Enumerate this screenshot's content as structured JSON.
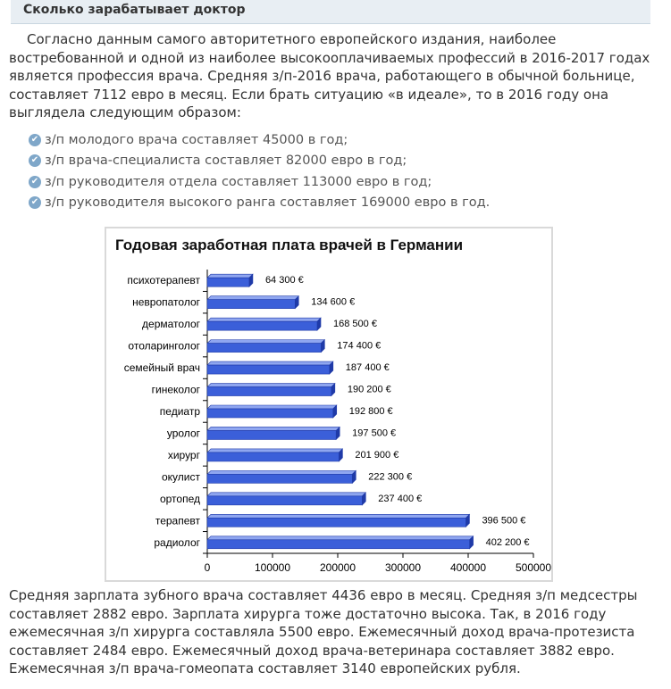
{
  "header": {
    "title": "Сколько зарабатывает доктор"
  },
  "intro": "Согласно данным самого авторитетного европейского издания, наиболее востребованной и одной из наиболее высокооплачиваемых профессий в 2016-2017 годах является профессия врача. Средняя з/п-2016 врача, работающего в обычной больнице, составляет 7112 евро в месяц. Если брать ситуацию «в идеале», то в 2016 году она выглядела следующим образом:",
  "bullets": [
    {
      "icon": "check-circle-icon",
      "text": "з/п молодого врача составляет 45000 в год;"
    },
    {
      "icon": "check-circle-icon",
      "text": "з/п врача-специалиста составляет 82000 евро в год;"
    },
    {
      "icon": "check-circle-icon",
      "text": "з/п руководителя отдела составляет 113000 евро в год;"
    },
    {
      "icon": "check-circle-icon",
      "text": "з/п руководителя высокого ранга составляет 169000 евро в год."
    }
  ],
  "outro": "Средняя зарплата зубного врача составляет 4436 евро в месяц. Средняя з/п медсестры составляет 2882 евро. Зарплата хирурга тоже достаточно высока. Так, в 2016 году ежемесячная з/п хирурга составляла 5500 евро. Ежемесячный доход врача-протезиста составляет 2484 евро. Ежемесячный доход врача-ветеринара составляет 3882 евро. Ежемесячная з/п врача-гомеопата составляет 3140 европейских рубля.",
  "colors": {
    "bar": "#3b5fd9",
    "bar_dark": "#1f3aa8",
    "bar_light": "#8fa6f0",
    "header_bg": "#e8eef3",
    "check": "#7fa7c9"
  },
  "chart_data": {
    "type": "bar",
    "orientation": "horizontal",
    "title": "Годовая заработная плата врачей в   Германии",
    "categories": [
      "психотерапевт",
      "невропатолог",
      "дерматолог",
      "отоларинголог",
      "семейный врач",
      "гинеколог",
      "педиатр",
      "уролог",
      "хирург",
      "окулист",
      "ортопед",
      "терапевт",
      "радиолог"
    ],
    "values": [
      64300,
      134600,
      168500,
      174400,
      187400,
      190200,
      192800,
      197500,
      201900,
      222300,
      237400,
      396500,
      402200
    ],
    "data_labels": [
      "64 300 €",
      "134 600 €",
      "168 500 €",
      "174 400 €",
      "187 400 €",
      "190 200 €",
      "192 800 €",
      "197 500 €",
      "201 900 €",
      "222 300 €",
      "237 400 €",
      "396 500 €",
      "402 200 €"
    ],
    "xlim": [
      0,
      500000
    ],
    "xticks": [
      0,
      100000,
      200000,
      300000,
      400000,
      500000
    ],
    "xtick_labels": [
      "0",
      "100000",
      "200000",
      "300000",
      "400000",
      "500000"
    ],
    "grid": false,
    "legend": "none"
  }
}
